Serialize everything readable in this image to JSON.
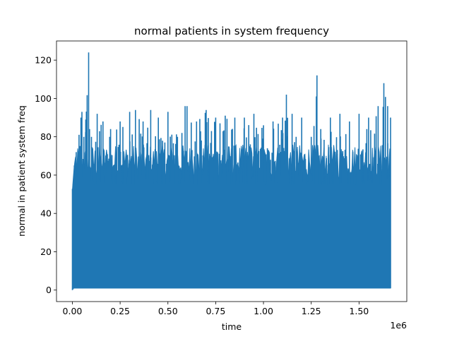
{
  "chart_data": {
    "type": "line",
    "title": "normal patients in system frequency",
    "xlabel": "time",
    "ylabel": "normal in patient system freq",
    "x_offset_label": "1e6",
    "xlim": [
      -0.083,
      1.75
    ],
    "ylim": [
      -6,
      130
    ],
    "x_ticks": [
      0.0,
      0.25,
      0.5,
      0.75,
      1.0,
      1.25,
      1.5
    ],
    "x_tick_labels": [
      "0.00",
      "0.25",
      "0.50",
      "0.75",
      "1.00",
      "1.25",
      "1.50"
    ],
    "y_ticks": [
      0,
      20,
      40,
      60,
      80,
      100,
      120
    ],
    "y_tick_labels": [
      "0",
      "20",
      "40",
      "60",
      "80",
      "100",
      "120"
    ],
    "grid": false,
    "legend": "none",
    "series": [
      {
        "color": "#1f77b4",
        "x": [
          0.0,
          0.01,
          0.02,
          0.035,
          0.045,
          0.05,
          0.06,
          0.07,
          0.085,
          0.09,
          0.1,
          0.13,
          0.16,
          0.2,
          0.25,
          0.3,
          0.33,
          0.37,
          0.41,
          0.45,
          0.5,
          0.55,
          0.59,
          0.6,
          0.65,
          0.7,
          0.75,
          0.8,
          0.85,
          0.9,
          0.95,
          1.0,
          1.05,
          1.1,
          1.12,
          1.15,
          1.2,
          1.25,
          1.28,
          1.3,
          1.35,
          1.4,
          1.45,
          1.5,
          1.55,
          1.6,
          1.63,
          1.65,
          1.665
        ],
        "max": [
          52,
          65,
          72,
          81,
          90,
          93,
          80,
          89,
          124,
          84,
          80,
          92,
          88,
          84,
          88,
          93,
          94,
          88,
          94,
          90,
          93,
          80,
          96,
          96,
          88,
          94,
          90,
          91,
          90,
          90,
          92,
          86,
          88,
          90,
          102,
          92,
          90,
          80,
          112,
          84,
          90,
          92,
          88,
          92,
          90,
          96,
          108,
          96,
          90
        ],
        "min": [
          0,
          1,
          1,
          1,
          1,
          1,
          1,
          1,
          1,
          1,
          1,
          1,
          1,
          1,
          1,
          1,
          1,
          1,
          1,
          1,
          1,
          1,
          1,
          1,
          1,
          1,
          1,
          1,
          1,
          1,
          1,
          1,
          1,
          1,
          1,
          1,
          1,
          1,
          1,
          1,
          1,
          1,
          1,
          1,
          1,
          1,
          1,
          1,
          1
        ]
      }
    ]
  }
}
